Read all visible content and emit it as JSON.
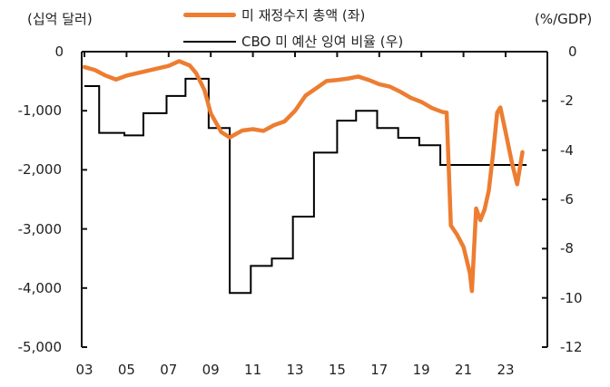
{
  "chart_data": {
    "type": "line",
    "title": "",
    "ylabel_left": "(십억 달러)",
    "ylabel_right": "(%/GDP)",
    "xlabel": "",
    "x_ticks": [
      "03",
      "05",
      "07",
      "09",
      "11",
      "13",
      "15",
      "17",
      "19",
      "21",
      "23"
    ],
    "y_left_ticks": [
      "0",
      "-1,000",
      "-2,000",
      "-3,000",
      "-4,000",
      "-5,000"
    ],
    "y_right_ticks": [
      "0",
      "-2",
      "-4",
      "-6",
      "-8",
      "-10",
      "-12"
    ],
    "ylim_left": [
      -5000,
      0
    ],
    "ylim_right": [
      -12,
      0
    ],
    "xlim": [
      2003,
      2025.1
    ],
    "grid": false,
    "legend_position": "top-center",
    "legend": [
      {
        "label": "미 재정수지 총액 (좌)",
        "color": "#ED7D31"
      },
      {
        "label": "CBO 미 예산 잉여 비율 (우)",
        "color": "#000000"
      }
    ],
    "series": [
      {
        "name": "미 재정수지 총액 (좌)",
        "axis": "left",
        "unit": "십억 달러",
        "color": "#ED7D31",
        "x": [
          2003.0,
          2003.5,
          2004.0,
          2004.5,
          2005.0,
          2006.0,
          2007.0,
          2007.5,
          2008.0,
          2008.3,
          2008.7,
          2009.0,
          2009.5,
          2009.9,
          2010.5,
          2011.0,
          2011.5,
          2012.0,
          2012.5,
          2013.0,
          2013.5,
          2014.0,
          2014.5,
          2015.0,
          2015.5,
          2016.0,
          2016.5,
          2017.0,
          2017.5,
          2018.0,
          2018.5,
          2019.0,
          2019.5,
          2020.0,
          2020.2,
          2020.3,
          2020.4,
          2020.7,
          2021.0,
          2021.3,
          2021.4,
          2021.6,
          2021.8,
          2022.0,
          2022.2,
          2022.4,
          2022.6,
          2022.75,
          2023.0,
          2023.3,
          2023.55,
          2023.8
        ],
        "values": [
          -260,
          -320,
          -400,
          -460,
          -415,
          -320,
          -230,
          -170,
          -230,
          -350,
          -660,
          -1040,
          -1350,
          -1460,
          -1330,
          -1300,
          -1350,
          -1240,
          -1170,
          -1010,
          -740,
          -610,
          -505,
          -475,
          -445,
          -430,
          -475,
          -540,
          -600,
          -675,
          -770,
          -860,
          -950,
          -1010,
          -1040,
          -1960,
          -2930,
          -3110,
          -3300,
          -3730,
          -4060,
          -2650,
          -2840,
          -2680,
          -2350,
          -1730,
          -1040,
          -940,
          -1350,
          -1890,
          -2240,
          -1700
        ]
      },
      {
        "name": "CBO 미 예산 잉여 비율 (우)",
        "axis": "right",
        "unit": "%/GDP",
        "color": "#000000",
        "step": true,
        "x": [
          2003.0,
          2003.7,
          2004.9,
          2005.8,
          2006.9,
          2007.8,
          2008.9,
          2009.9,
          2010.9,
          2011.9,
          2012.9,
          2013.9,
          2015.0,
          2015.9,
          2016.9,
          2017.9,
          2018.9,
          2019.9,
          2024.0
        ],
        "values": [
          -1.4,
          -3.3,
          -3.4,
          -2.5,
          -1.8,
          -1.1,
          -3.1,
          -9.8,
          -8.7,
          -8.4,
          -6.7,
          -4.1,
          -2.8,
          -2.4,
          -3.1,
          -3.5,
          -3.8,
          -4.6,
          -4.6
        ]
      }
    ]
  }
}
